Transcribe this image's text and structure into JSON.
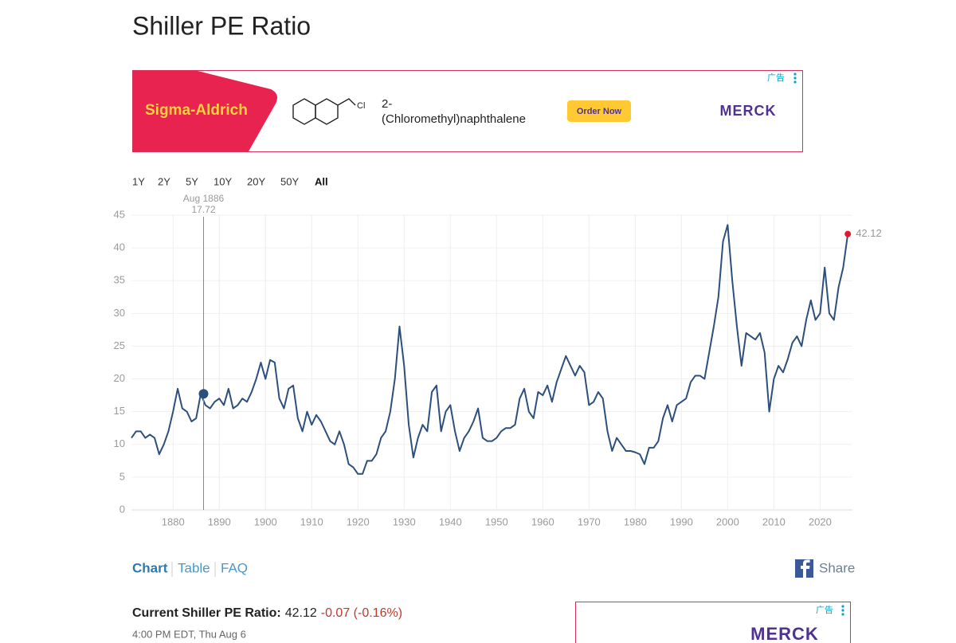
{
  "header": {
    "title": "Shiller PE Ratio"
  },
  "ad": {
    "brand": "Sigma-Aldrich",
    "atom": "Cl",
    "product": [
      "2-",
      "(Chloromethyl)naphthalene"
    ],
    "button": "Order Now",
    "logo": "MERCK",
    "label": "广告"
  },
  "range_buttons": [
    "1Y",
    "2Y",
    "5Y",
    "10Y",
    "20Y",
    "50Y",
    "All"
  ],
  "chart_data": {
    "type": "line",
    "color": "#2d4f7c",
    "grid": true,
    "x": [
      1871,
      1872,
      1873,
      1874,
      1875,
      1876,
      1877,
      1878,
      1879,
      1880,
      1881,
      1882,
      1883,
      1884,
      1885,
      1886,
      1887,
      1888,
      1889,
      1890,
      1891,
      1892,
      1893,
      1894,
      1895,
      1896,
      1897,
      1898,
      1899,
      1900,
      1901,
      1902,
      1903,
      1904,
      1905,
      1906,
      1907,
      1908,
      1909,
      1910,
      1911,
      1912,
      1913,
      1914,
      1915,
      1916,
      1917,
      1918,
      1919,
      1920,
      1921,
      1922,
      1923,
      1924,
      1925,
      1926,
      1927,
      1928,
      1929,
      1930,
      1931,
      1932,
      1933,
      1934,
      1935,
      1936,
      1937,
      1938,
      1939,
      1940,
      1941,
      1942,
      1943,
      1944,
      1945,
      1946,
      1947,
      1948,
      1949,
      1950,
      1951,
      1952,
      1953,
      1954,
      1955,
      1956,
      1957,
      1958,
      1959,
      1960,
      1961,
      1962,
      1963,
      1964,
      1965,
      1966,
      1967,
      1968,
      1969,
      1970,
      1971,
      1972,
      1973,
      1974,
      1975,
      1976,
      1977,
      1978,
      1979,
      1980,
      1981,
      1982,
      1983,
      1984,
      1985,
      1986,
      1987,
      1988,
      1989,
      1990,
      1991,
      1992,
      1993,
      1994,
      1995,
      1996,
      1997,
      1998,
      1999,
      2000,
      2001,
      2002,
      2003,
      2004,
      2005,
      2006,
      2007,
      2008,
      2009,
      2010,
      2011,
      2012,
      2013,
      2014,
      2015,
      2016,
      2017,
      2018,
      2019,
      2020,
      2021,
      2022,
      2023,
      2024,
      2025,
      2026
    ],
    "values": [
      11,
      12,
      12,
      11,
      11.5,
      11,
      8.5,
      10,
      12,
      15,
      18.5,
      15.5,
      15,
      13.5,
      14,
      17.72,
      16,
      15.5,
      16.5,
      17,
      16,
      18.5,
      15.5,
      16,
      17,
      16.5,
      18,
      20,
      22.5,
      20,
      22.9,
      22.5,
      17,
      15.5,
      18.5,
      19,
      14,
      12,
      15,
      13,
      14.5,
      13.5,
      12,
      10.5,
      10,
      12,
      10,
      7,
      6.5,
      5.5,
      5.5,
      7.5,
      7.5,
      8.5,
      11,
      12,
      15,
      20,
      28,
      22,
      13,
      8,
      11,
      13,
      12,
      18,
      19,
      12,
      15,
      16,
      12,
      9,
      11,
      12,
      13.5,
      15.5,
      11,
      10.5,
      10.5,
      11,
      12,
      12.5,
      12.5,
      13,
      17,
      18.5,
      15,
      14,
      18,
      17.5,
      19,
      16.5,
      19.5,
      21.5,
      23.5,
      22,
      20.5,
      22,
      21,
      16,
      16.5,
      18,
      17,
      12,
      9,
      11,
      10,
      9,
      9,
      8.8,
      8.5,
      7,
      9.5,
      9.5,
      10.5,
      14,
      16,
      13.5,
      16,
      16.5,
      17,
      19.5,
      20.5,
      20.5,
      20,
      24,
      28,
      32.5,
      41,
      43.5,
      35,
      28,
      22,
      27,
      26.5,
      26,
      27,
      24,
      15,
      20,
      22,
      21,
      23,
      25.5,
      26.5,
      25,
      29,
      32,
      29,
      30,
      37,
      30,
      29,
      34,
      37,
      42.12
    ],
    "xlim": [
      1871,
      2027
    ],
    "ylim": [
      0,
      45
    ],
    "xticks": [
      1880,
      1890,
      1900,
      1910,
      1920,
      1930,
      1940,
      1950,
      1960,
      1970,
      1980,
      1990,
      2000,
      2010,
      2020
    ],
    "yticks": [
      0,
      5,
      10,
      15,
      20,
      25,
      30,
      35,
      40,
      45
    ],
    "tooltip": {
      "date": "Aug 1886",
      "x": 1886.6,
      "value": 17.72
    }
  },
  "tabs": [
    "Chart",
    "Table",
    "FAQ"
  ],
  "share": "Share",
  "current": {
    "label": "Current Shiller PE Ratio:",
    "value": "42.12",
    "change": "-0.07 (-0.16%)",
    "time": "4:00 PM EDT, Thu Aug 6"
  },
  "ad2": {
    "label": "广告",
    "logo": "MERCK"
  }
}
